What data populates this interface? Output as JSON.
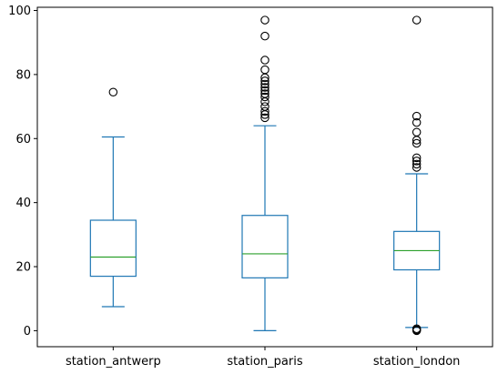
{
  "chart_data": {
    "type": "box",
    "title": "",
    "xlabel": "",
    "ylabel": "",
    "ylim": [
      -5,
      101
    ],
    "yticks": [
      "0",
      "20",
      "40",
      "60",
      "80",
      "100"
    ],
    "grid": false,
    "colors": {
      "box": "#1f77b4",
      "median": "#2ca02c",
      "outlier": "#000000",
      "axis": "#000000"
    },
    "boxes": [
      {
        "category": "station_antwerp",
        "whisker_low": 7.5,
        "q1": 17,
        "median": 23,
        "q3": 34.5,
        "whisker_high": 60.5,
        "outliers": [
          74.5
        ]
      },
      {
        "category": "station_paris",
        "whisker_low": 0,
        "q1": 16.5,
        "median": 24,
        "q3": 36,
        "whisker_high": 64,
        "outliers": [
          66.5,
          67.5,
          68.5,
          70,
          71.5,
          73,
          74,
          75,
          76,
          77,
          78,
          79,
          81.5,
          84.5,
          92,
          97
        ]
      },
      {
        "category": "station_london",
        "whisker_low": 1,
        "q1": 19,
        "median": 25,
        "q3": 31,
        "whisker_high": 49,
        "outliers": [
          0,
          0.3,
          0.6,
          51,
          52,
          53,
          54,
          58.5,
          59.5,
          62,
          65,
          67,
          97
        ]
      }
    ]
  }
}
